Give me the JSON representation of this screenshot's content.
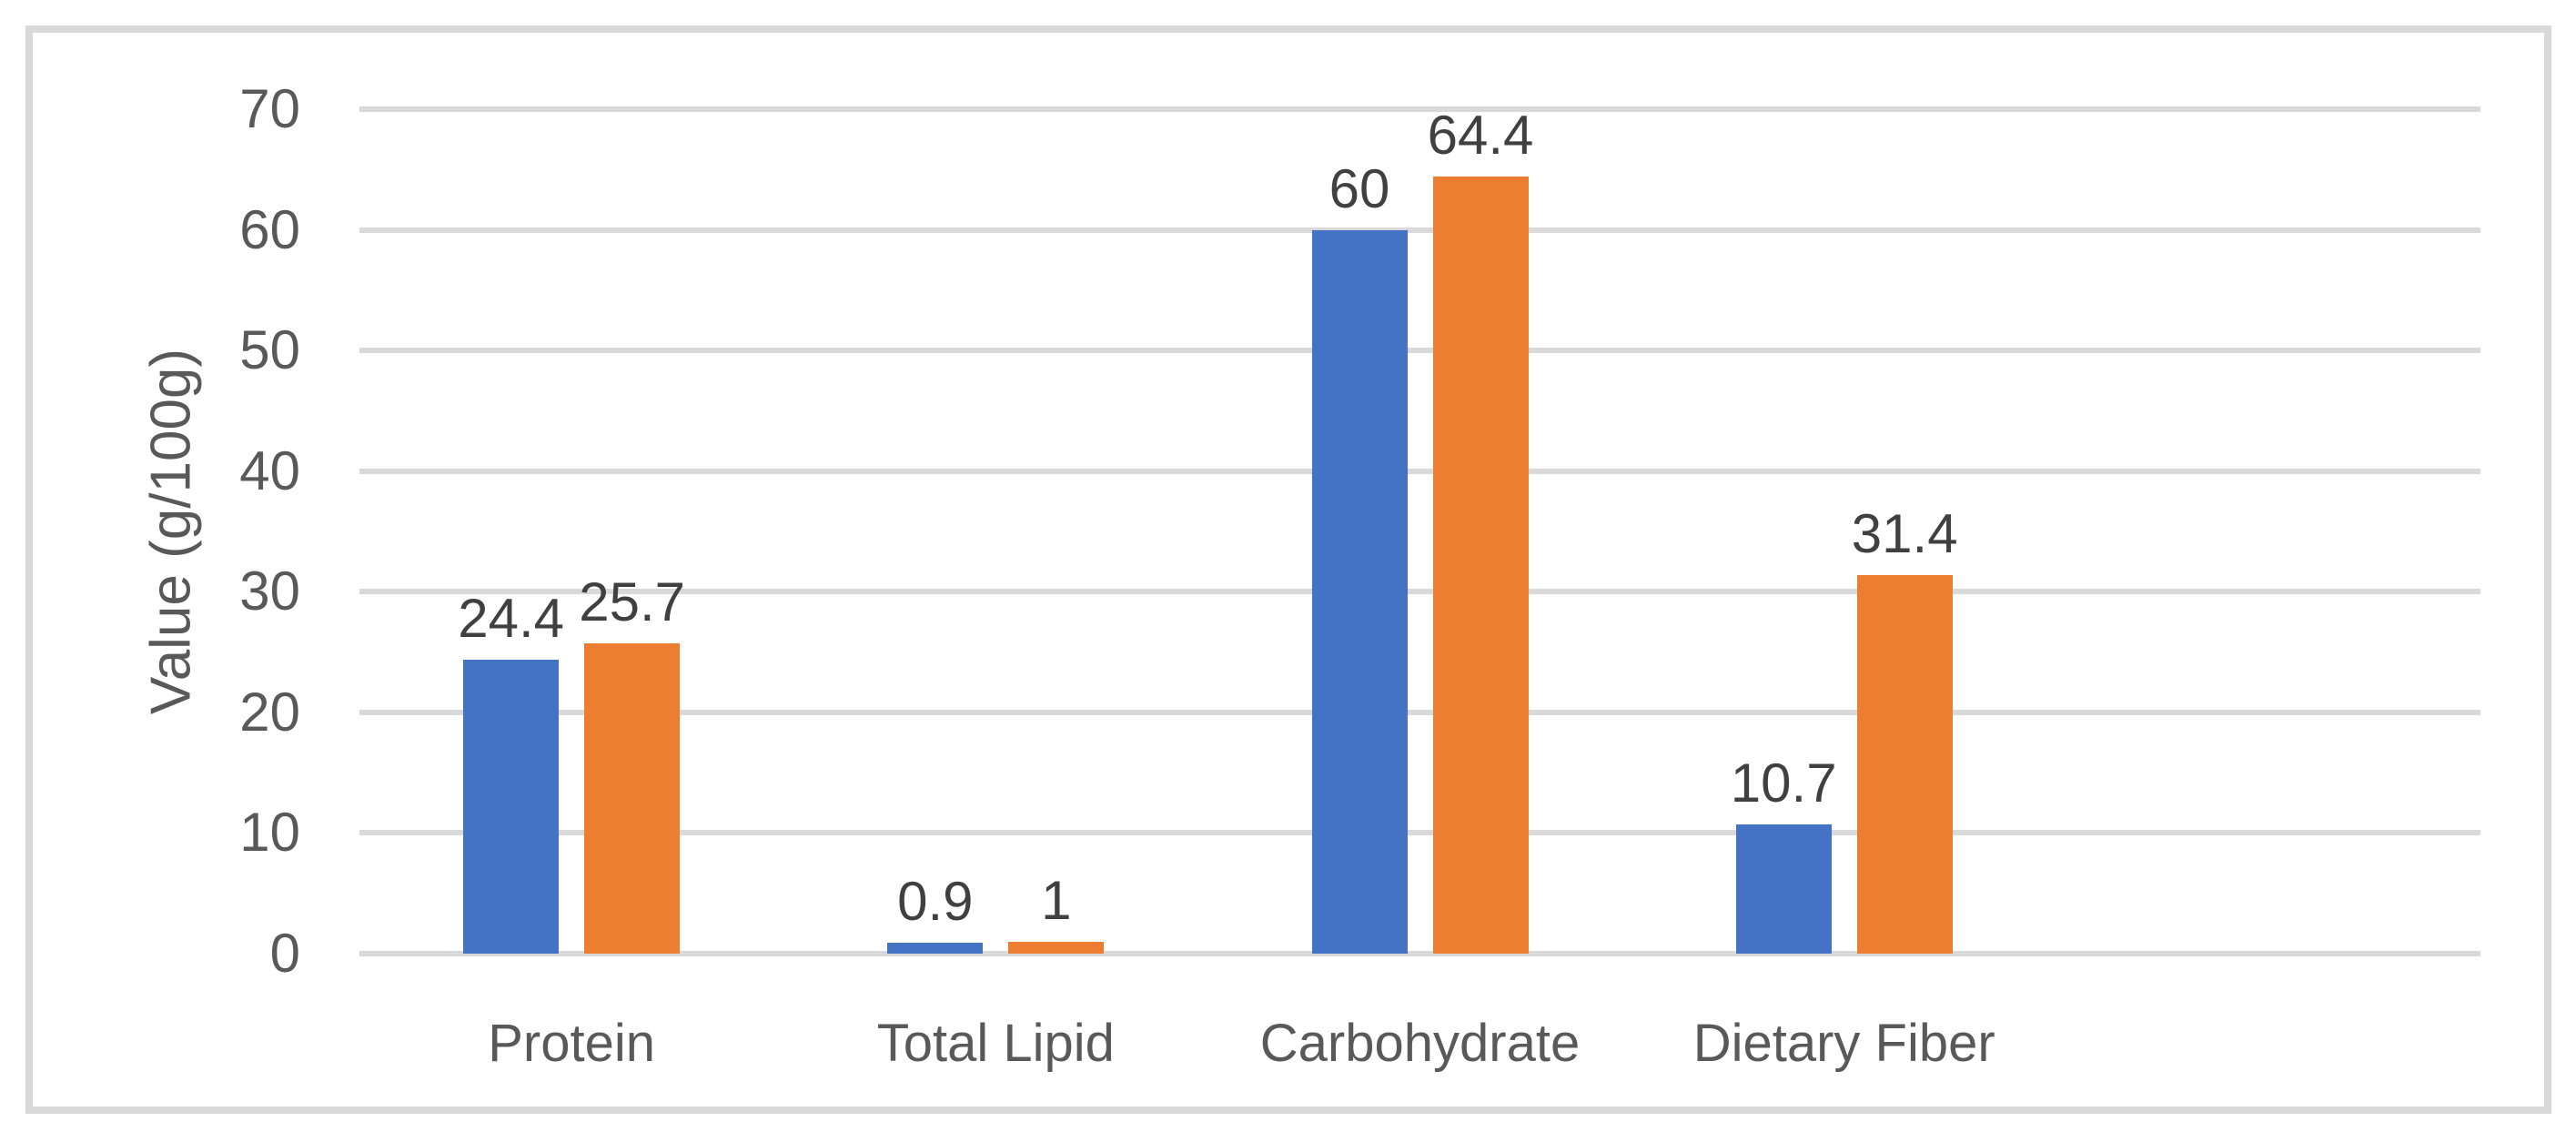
{
  "chart_data": {
    "type": "bar",
    "title": "",
    "categories": [
      "Protein",
      "Total Lipid",
      "Carbohydrate",
      "Dietary Fiber"
    ],
    "series": [
      {
        "id": "blue",
        "color": "#4472C4",
        "values": [
          24.4,
          0.9,
          60,
          10.7
        ],
        "labels": [
          "24.4",
          "0.9",
          "60",
          "10.7"
        ]
      },
      {
        "id": "orange",
        "color": "#ED7D31",
        "values": [
          25.7,
          1,
          64.4,
          31.4
        ],
        "labels": [
          "25.7",
          "1",
          "64.4",
          "31.4"
        ]
      }
    ],
    "xlabel": "",
    "ylabel": "Value (g/100g)",
    "ylim": [
      0,
      70
    ],
    "ytick_step": 10,
    "yticks": [
      "0",
      "10",
      "20",
      "30",
      "40",
      "50",
      "60",
      "70"
    ],
    "grid": "horizontal",
    "legend": "none",
    "x_slot_count": 5
  },
  "colors": {
    "gridline": "#D9D9D9",
    "frame_border": "#D9D9D9",
    "axis_text": "#595959",
    "data_label_text": "#404040"
  }
}
